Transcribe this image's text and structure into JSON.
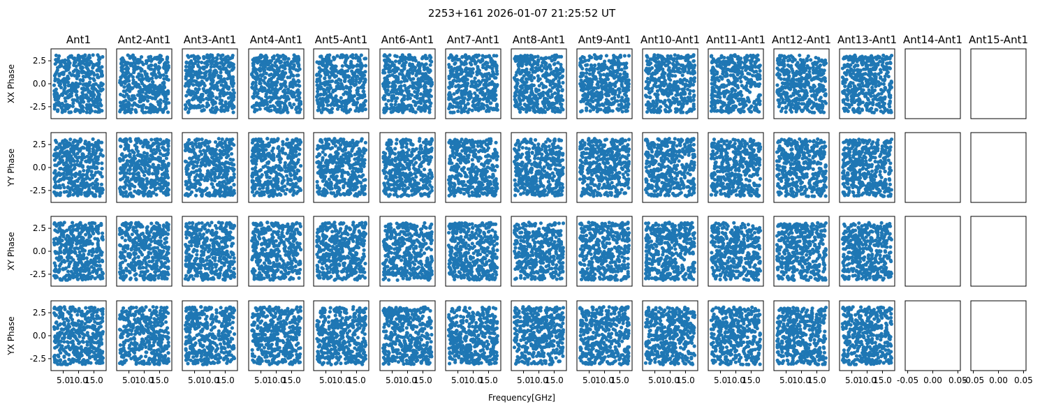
{
  "figure": {
    "suptitle": "2253+161 2026-01-07 21:25:52 UT",
    "xlabel": "Frequency[GHz]"
  },
  "chart_data": {
    "type": "scatter",
    "title": "2253+161 2026-01-07 21:25:52 UT",
    "xlabel": "Frequency[GHz]",
    "columns": [
      "Ant1",
      "Ant2-Ant1",
      "Ant3-Ant1",
      "Ant4-Ant1",
      "Ant5-Ant1",
      "Ant6-Ant1",
      "Ant7-Ant1",
      "Ant8-Ant1",
      "Ant9-Ant1",
      "Ant10-Ant1",
      "Ant11-Ant1",
      "Ant12-Ant1",
      "Ant13-Ant1",
      "Ant14-Ant1",
      "Ant15-Ant1"
    ],
    "rows": [
      "XX Phase",
      "YY Phase",
      "XY Phase",
      "YX Phase"
    ],
    "series_color": "#1f77b4",
    "data_columns": 13,
    "empty_columns": [
      "Ant14-Ant1",
      "Ant15-Ant1"
    ],
    "xlim_data": [
      1.0,
      19.0
    ],
    "xticks_data": [
      5.0,
      10.0,
      15.0
    ],
    "xtick_labels_data": [
      "5.0",
      "10.0",
      "15.0"
    ],
    "xlim_empty": [
      -0.055,
      0.055
    ],
    "xticks_empty": [
      -0.05,
      0.0,
      0.05
    ],
    "xtick_labels_empty": [
      "-0.05",
      "0.00",
      "0.05"
    ],
    "ylim": [
      -3.8,
      3.8
    ],
    "yticks": [
      2.5,
      0.0,
      -2.5
    ],
    "ytick_labels": [
      "2.5",
      "0.0",
      "-2.5"
    ],
    "points_per_panel": 420,
    "phase_range": [
      -3.14,
      3.14
    ],
    "freq_range_GHz": [
      2.0,
      18.0
    ],
    "grid": false,
    "legend": "none"
  }
}
